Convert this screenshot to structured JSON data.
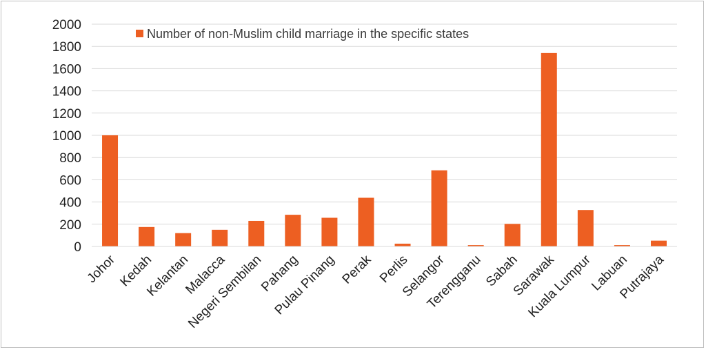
{
  "chart_data": {
    "type": "bar",
    "title": "",
    "xlabel": "",
    "ylabel": "",
    "ylim": [
      0,
      2000
    ],
    "yticks": [
      0,
      200,
      400,
      600,
      800,
      1000,
      1200,
      1400,
      1600,
      1800,
      2000
    ],
    "grid": true,
    "legend_position": "top-left",
    "categories": [
      "Johor",
      "Kedah",
      "Kelantan",
      "Malacca",
      "Negeri Sembilan",
      "Pahang",
      "Pulau Pinang",
      "Perak",
      "Perlis",
      "Selangor",
      "Terengganu",
      "Sabah",
      "Sarawak",
      "Kuala Lumpur",
      "Labuan",
      "Putrajaya"
    ],
    "series": [
      {
        "name": "Number of non-Muslim child marriage in the specific states",
        "color": "#ED5F22",
        "values": [
          1000,
          175,
          120,
          150,
          230,
          285,
          258,
          438,
          25,
          685,
          12,
          203,
          1740,
          328,
          12,
          52
        ]
      }
    ]
  }
}
